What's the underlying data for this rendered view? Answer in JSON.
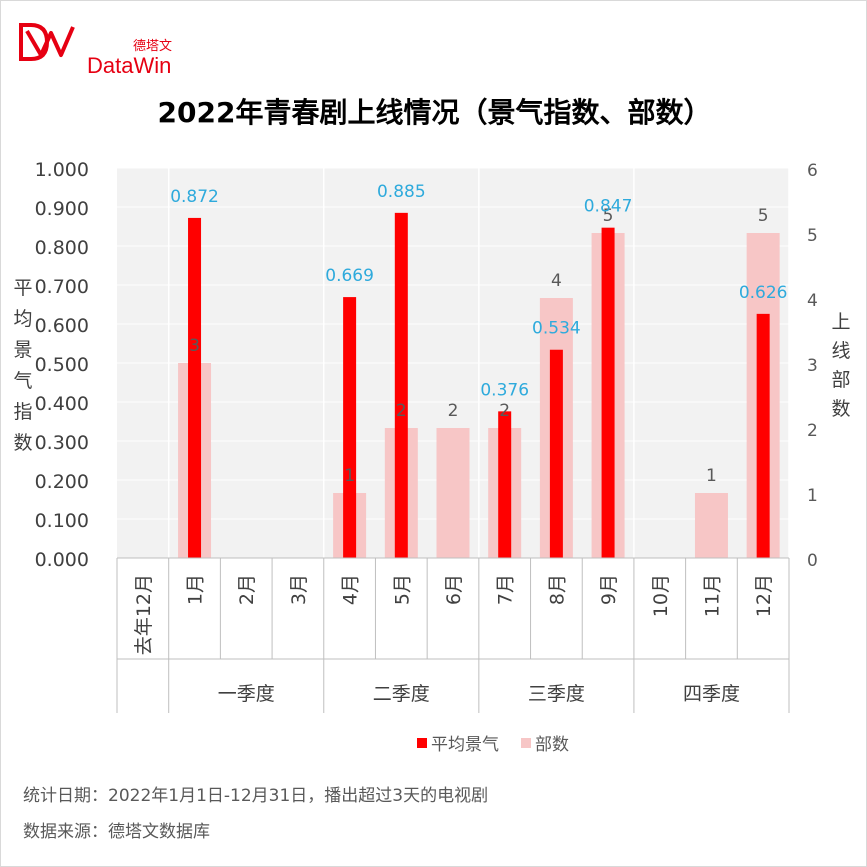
{
  "brand": {
    "name_cn": "德塔文",
    "name_en": "DataWin",
    "logo": "datawin-logo"
  },
  "chart_data": {
    "type": "bar",
    "title": "2022年青春剧上线情况（景气指数、部数）",
    "categories": [
      "去年12月",
      "1月",
      "2月",
      "3月",
      "4月",
      "5月",
      "6月",
      "7月",
      "8月",
      "9月",
      "10月",
      "11月",
      "12月"
    ],
    "groups": [
      {
        "label": "一季度",
        "span": [
          1,
          3
        ]
      },
      {
        "label": "二季度",
        "span": [
          4,
          6
        ]
      },
      {
        "label": "三季度",
        "span": [
          7,
          9
        ]
      },
      {
        "label": "四季度",
        "span": [
          10,
          12
        ]
      }
    ],
    "y_left": {
      "label": "平均景气指数",
      "ticks": [
        "0.000",
        "0.100",
        "0.200",
        "0.300",
        "0.400",
        "0.500",
        "0.600",
        "0.700",
        "0.800",
        "0.900",
        "1.000"
      ],
      "range": [
        0,
        1
      ]
    },
    "y_right": {
      "label": "上线部数",
      "ticks": [
        "0",
        "1",
        "2",
        "3",
        "4",
        "5",
        "6"
      ],
      "range": [
        0,
        6
      ]
    },
    "series": [
      {
        "name": "平均景气",
        "axis": "left",
        "color": "#ff0000",
        "label_color": "#2eaadc",
        "values": [
          null,
          0.872,
          null,
          null,
          0.669,
          0.885,
          null,
          0.376,
          0.534,
          0.847,
          null,
          null,
          0.626
        ],
        "labels": [
          "",
          "0.872",
          "",
          "",
          "0.669",
          "0.885",
          "",
          "0.376",
          "0.534",
          "0.847",
          "",
          "",
          "0.626"
        ]
      },
      {
        "name": "部数",
        "axis": "right",
        "color": "#f7c6c6",
        "label_color": "#595959",
        "values": [
          null,
          3,
          null,
          null,
          1,
          2,
          2,
          2,
          4,
          5,
          null,
          1,
          5
        ],
        "labels": [
          "",
          "3",
          "",
          "",
          "1",
          "2",
          "2",
          "2",
          "4",
          "5",
          "",
          "1",
          "5"
        ]
      }
    ],
    "legend": {
      "position": "bottom",
      "items": [
        "平均景气",
        "部数"
      ]
    },
    "grid": true,
    "plot_background": "#f2f2f2"
  },
  "footnotes": {
    "date": "统计日期：2022年1月1日-12月31日，播出超过3天的电视剧",
    "source": "数据来源：德塔文数据库"
  }
}
